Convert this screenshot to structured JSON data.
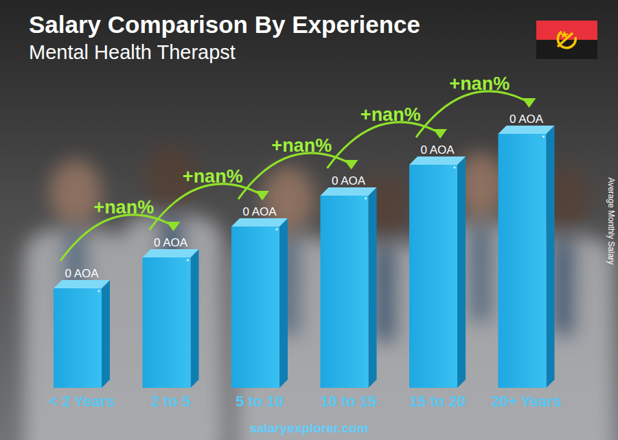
{
  "chart_data": {
    "type": "bar",
    "title": "Salary Comparison By Experience",
    "subtitle": "Mental Health Therapst",
    "categories": [
      "< 2 Years",
      "2 to 5",
      "5 to 10",
      "10 to 15",
      "15 to 20",
      "20+ Years"
    ],
    "values": [
      0,
      0,
      0,
      0,
      0,
      0
    ],
    "value_labels": [
      "0 AOA",
      "0 AOA",
      "0 AOA",
      "0 AOA",
      "0 AOA",
      "0 AOA"
    ],
    "data_labels": true,
    "annotations": [
      "+nan%",
      "+nan%",
      "+nan%",
      "+nan%",
      "+nan%"
    ],
    "ylabel": "Average Monthly Salary",
    "source": "salaryexplorer.com",
    "tick_labels": "x",
    "color": "#1ea7e1"
  }
}
